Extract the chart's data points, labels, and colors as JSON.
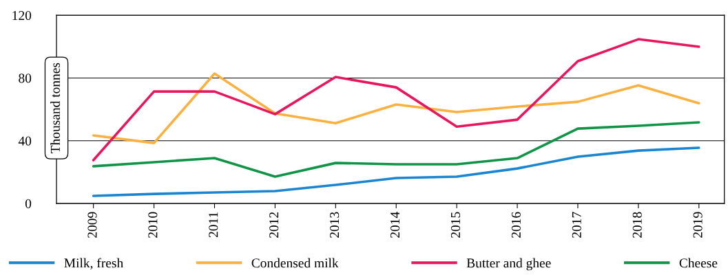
{
  "chart_data": {
    "type": "line",
    "ylabel": "Thousand tonnes",
    "categories": [
      "2009",
      "2010",
      "2011",
      "2012",
      "2013",
      "2014",
      "2015",
      "2016",
      "2017",
      "2018",
      "2019"
    ],
    "series": [
      {
        "name": "Milk, fresh",
        "color": "#1a85d0",
        "values": [
          4.8,
          6.1,
          7,
          7.9,
          11.8,
          16.2,
          17.1,
          22.3,
          29.8,
          33.7,
          35.5
        ]
      },
      {
        "name": "Condensed milk",
        "color": "#fbb040",
        "values": [
          43.4,
          38.5,
          82.8,
          57.4,
          51.2,
          63.1,
          58.3,
          61.8,
          64.8,
          75.3,
          63.9
        ]
      },
      {
        "name": "Butter and ghee",
        "color": "#e8175d",
        "values": [
          27.6,
          71.4,
          71.4,
          56.9,
          80.6,
          74,
          49,
          53.4,
          90.7,
          104.7,
          99.9
        ]
      },
      {
        "name": "Cheese",
        "color": "#109448",
        "values": [
          23.7,
          26.3,
          28.9,
          17.1,
          25.8,
          25,
          25,
          28.9,
          47.7,
          49.5,
          51.7
        ]
      }
    ],
    "ylim": [
      0,
      120
    ],
    "yticks": [
      0,
      40,
      80,
      120
    ],
    "grid": "y",
    "legend": "bottom",
    "marker": "none",
    "line_style": "solid"
  }
}
